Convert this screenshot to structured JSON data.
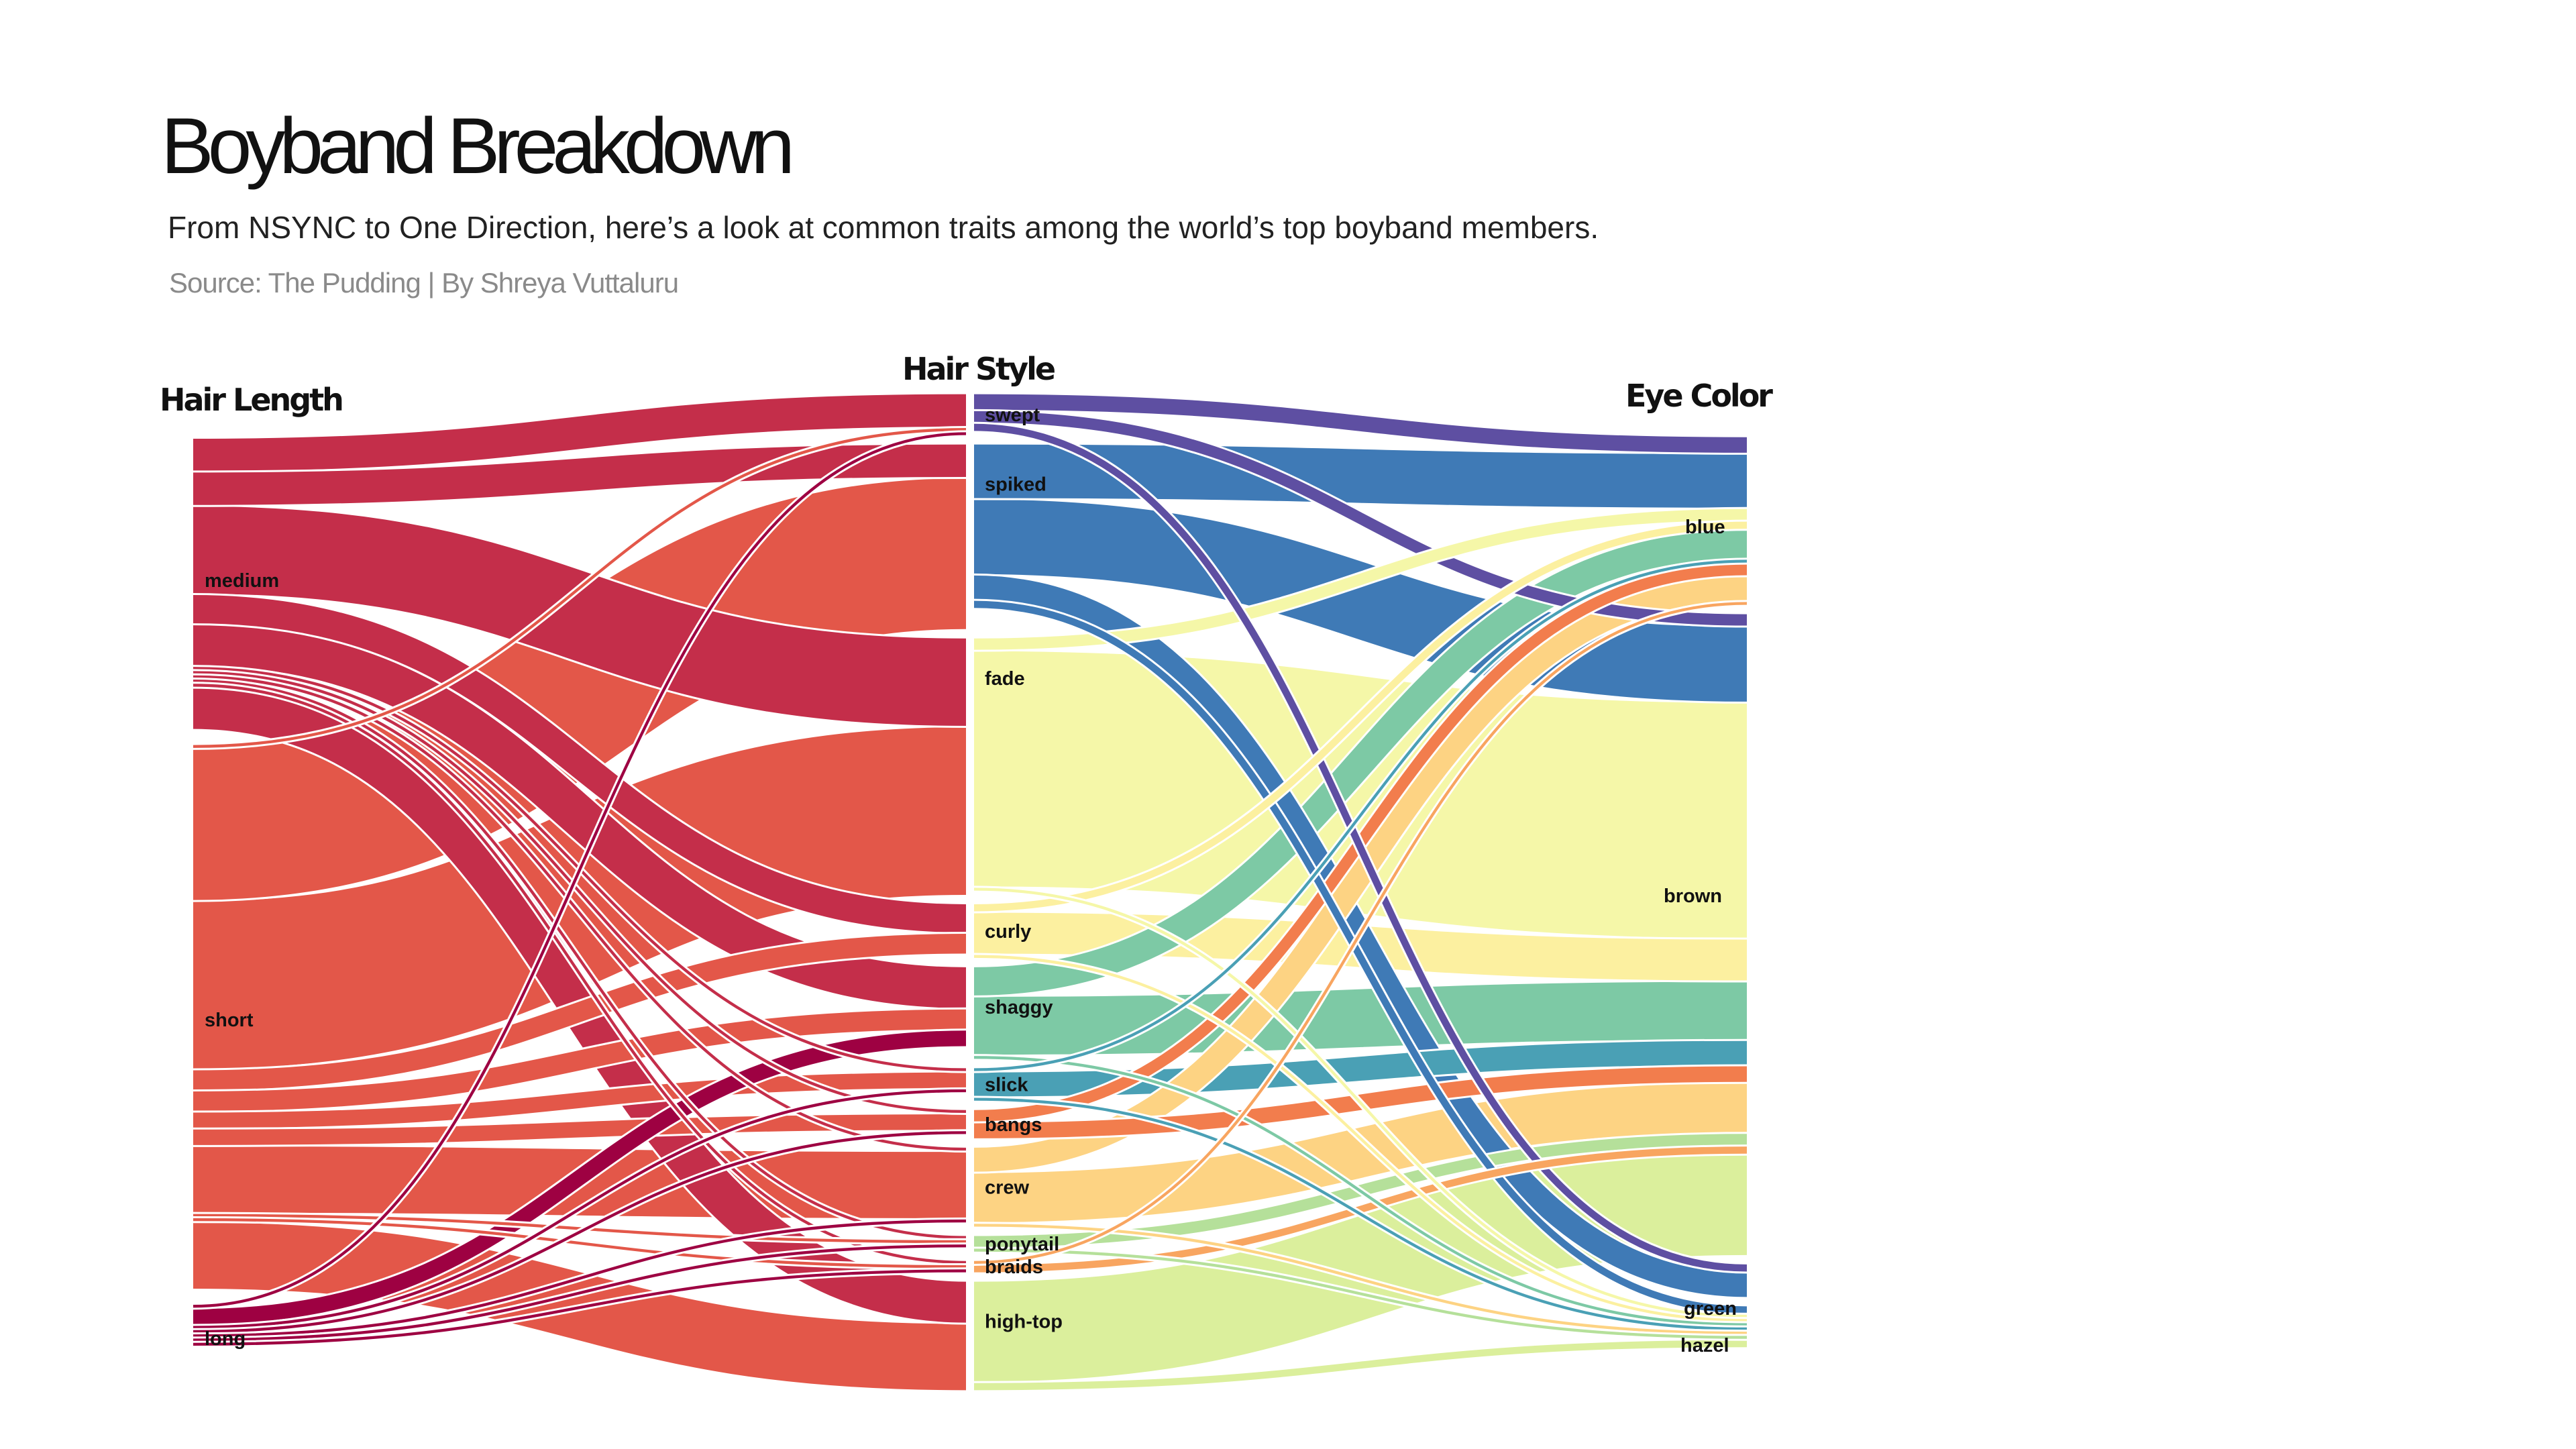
{
  "header": {
    "title": "Boyband Breakdown",
    "subtitle": "From NSYNC to One Direction, here’s a look at common traits among the world’s top boyband members.",
    "source": "Source: The Pudding | By Shreya Vuttaluru"
  },
  "chart_data": {
    "type": "sankey",
    "columns": [
      "Hair Length",
      "Hair Style",
      "Eye Color"
    ],
    "nodes": {
      "Hair Length": [
        {
          "name": "medium",
          "color": "#C42E4A"
        },
        {
          "name": "short",
          "color": "#E35749"
        },
        {
          "name": "long",
          "color": "#9E0142"
        }
      ],
      "Hair Style": [
        {
          "name": "swept",
          "color": "#5E4FA2"
        },
        {
          "name": "spiked",
          "color": "#3F7AB6"
        },
        {
          "name": "fade",
          "color": "#F5F7A8"
        },
        {
          "name": "curly",
          "color": "#FCF0A0"
        },
        {
          "name": "shaggy",
          "color": "#7DC9A5"
        },
        {
          "name": "slick",
          "color": "#4AA0B5"
        },
        {
          "name": "bangs",
          "color": "#F27D4D"
        },
        {
          "name": "crew",
          "color": "#FDD383"
        },
        {
          "name": "ponytail",
          "color": "#B5E09A"
        },
        {
          "name": "braids",
          "color": "#F8A560"
        },
        {
          "name": "high-top",
          "color": "#DBEF9C"
        }
      ],
      "Eye Color": [
        {
          "name": "blue"
        },
        {
          "name": "brown"
        },
        {
          "name": "green"
        },
        {
          "name": "hazel"
        }
      ]
    },
    "links_length_style": [
      {
        "source": "medium",
        "target": "swept",
        "value": 8
      },
      {
        "source": "medium",
        "target": "spiked",
        "value": 8
      },
      {
        "source": "medium",
        "target": "fade",
        "value": 21
      },
      {
        "source": "medium",
        "target": "curly",
        "value": 7
      },
      {
        "source": "medium",
        "target": "shaggy",
        "value": 10
      },
      {
        "source": "medium",
        "target": "slick",
        "value": 1
      },
      {
        "source": "medium",
        "target": "bangs",
        "value": 1
      },
      {
        "source": "medium",
        "target": "crew",
        "value": 1
      },
      {
        "source": "medium",
        "target": "ponytail",
        "value": 1
      },
      {
        "source": "medium",
        "target": "braids",
        "value": 1
      },
      {
        "source": "medium",
        "target": "high-top",
        "value": 10
      },
      {
        "source": "short",
        "target": "swept",
        "value": 1
      },
      {
        "source": "short",
        "target": "spiked",
        "value": 36
      },
      {
        "source": "short",
        "target": "fade",
        "value": 40
      },
      {
        "source": "short",
        "target": "curly",
        "value": 5
      },
      {
        "source": "short",
        "target": "shaggy",
        "value": 5
      },
      {
        "source": "short",
        "target": "slick",
        "value": 4
      },
      {
        "source": "short",
        "target": "bangs",
        "value": 4
      },
      {
        "source": "short",
        "target": "crew",
        "value": 16
      },
      {
        "source": "short",
        "target": "ponytail",
        "value": 1
      },
      {
        "source": "short",
        "target": "braids",
        "value": 1
      },
      {
        "source": "short",
        "target": "high-top",
        "value": 16
      },
      {
        "source": "long",
        "target": "swept",
        "value": 1
      },
      {
        "source": "long",
        "target": "shaggy",
        "value": 4
      },
      {
        "source": "long",
        "target": "slick",
        "value": 1
      },
      {
        "source": "long",
        "target": "bangs",
        "value": 1
      },
      {
        "source": "long",
        "target": "crew",
        "value": 1
      },
      {
        "source": "long",
        "target": "ponytail",
        "value": 1
      },
      {
        "source": "long",
        "target": "braids",
        "value": 1
      }
    ],
    "links_style_eye": [
      {
        "source": "swept",
        "target": "blue",
        "value": 4
      },
      {
        "source": "swept",
        "target": "brown",
        "value": 3
      },
      {
        "source": "swept",
        "target": "green",
        "value": 2
      },
      {
        "source": "spiked",
        "target": "blue",
        "value": 13
      },
      {
        "source": "spiked",
        "target": "brown",
        "value": 18
      },
      {
        "source": "spiked",
        "target": "green",
        "value": 6
      },
      {
        "source": "spiked",
        "target": "hazel",
        "value": 2
      },
      {
        "source": "fade",
        "target": "blue",
        "value": 3
      },
      {
        "source": "fade",
        "target": "brown",
        "value": 56
      },
      {
        "source": "fade",
        "target": "hazel",
        "value": 1
      },
      {
        "source": "curly",
        "target": "blue",
        "value": 2
      },
      {
        "source": "curly",
        "target": "brown",
        "value": 10
      },
      {
        "source": "curly",
        "target": "hazel",
        "value": 1
      },
      {
        "source": "shaggy",
        "target": "blue",
        "value": 7
      },
      {
        "source": "shaggy",
        "target": "brown",
        "value": 14
      },
      {
        "source": "shaggy",
        "target": "hazel",
        "value": 1
      },
      {
        "source": "slick",
        "target": "blue",
        "value": 1
      },
      {
        "source": "slick",
        "target": "brown",
        "value": 6
      },
      {
        "source": "slick",
        "target": "hazel",
        "value": 1
      },
      {
        "source": "bangs",
        "target": "blue",
        "value": 3
      },
      {
        "source": "bangs",
        "target": "brown",
        "value": 4
      },
      {
        "source": "crew",
        "target": "blue",
        "value": 6
      },
      {
        "source": "crew",
        "target": "brown",
        "value": 12
      },
      {
        "source": "crew",
        "target": "hazel",
        "value": 1
      },
      {
        "source": "ponytail",
        "target": "brown",
        "value": 3
      },
      {
        "source": "ponytail",
        "target": "hazel",
        "value": 1
      },
      {
        "source": "braids",
        "target": "blue",
        "value": 1
      },
      {
        "source": "braids",
        "target": "brown",
        "value": 2
      },
      {
        "source": "high-top",
        "target": "brown",
        "value": 24
      },
      {
        "source": "high-top",
        "target": "hazel",
        "value": 2
      }
    ],
    "grid": false,
    "legend": "none"
  }
}
